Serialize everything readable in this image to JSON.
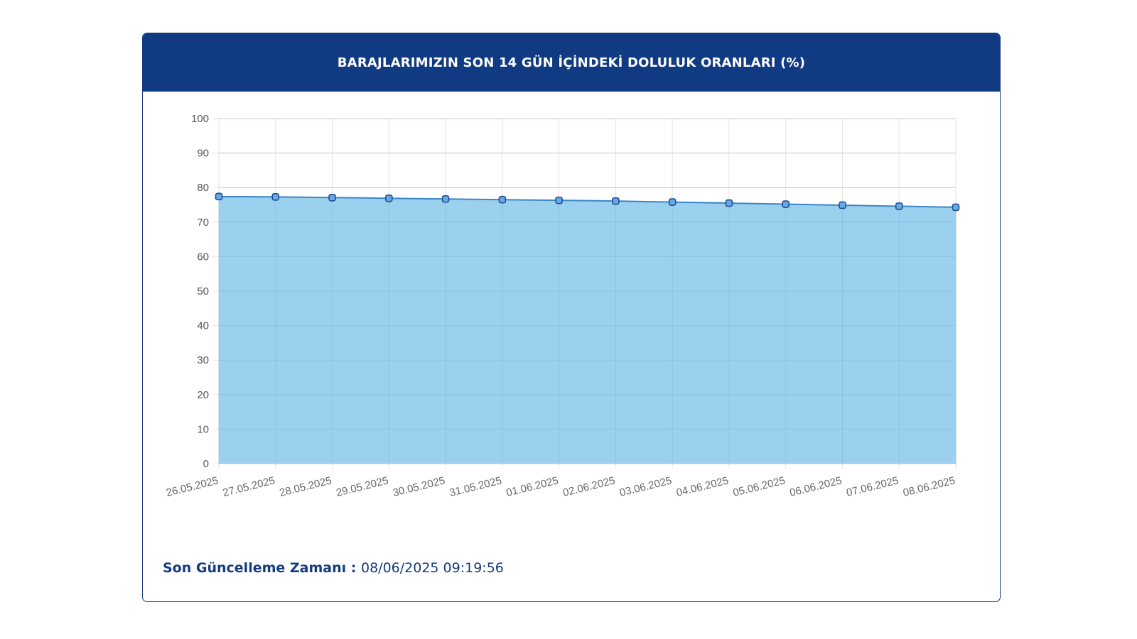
{
  "card": {
    "title": "BARAJLARIMIZIN SON 14 GÜN İÇİNDEKİ DOLULUK ORANLARI (%)"
  },
  "footer": {
    "label": "Son Güncelleme Zamanı",
    "separator": " : ",
    "value": "08/06/2025 09:19:56"
  },
  "colors": {
    "header_bg": "#103a82",
    "area_fill": "#9bd0ee",
    "line": "#3a86c8",
    "marker_stroke": "#1f4f9a",
    "marker_fill": "#6aa9e0",
    "grid": "#e3e3e3",
    "text_dark": "#143b7e"
  },
  "chart_data": {
    "type": "area",
    "title": "BARAJLARIMIZIN SON 14 GÜN İÇİNDEKİ DOLULUK ORANLARI (%)",
    "xlabel": "",
    "ylabel": "",
    "ylim": [
      0,
      100
    ],
    "yticks": [
      0,
      10,
      20,
      30,
      40,
      50,
      60,
      70,
      80,
      90,
      100
    ],
    "grid": true,
    "legend": "none",
    "categories": [
      "26.05.2025",
      "27.05.2025",
      "28.05.2025",
      "29.05.2025",
      "30.05.2025",
      "31.05.2025",
      "01.06.2025",
      "02.06.2025",
      "03.06.2025",
      "04.06.2025",
      "05.06.2025",
      "06.06.2025",
      "07.06.2025",
      "08.06.2025"
    ],
    "series": [
      {
        "values": [
          77.4,
          77.3,
          77.1,
          76.9,
          76.7,
          76.5,
          76.3,
          76.1,
          75.8,
          75.5,
          75.2,
          74.9,
          74.6,
          74.3
        ]
      }
    ]
  }
}
